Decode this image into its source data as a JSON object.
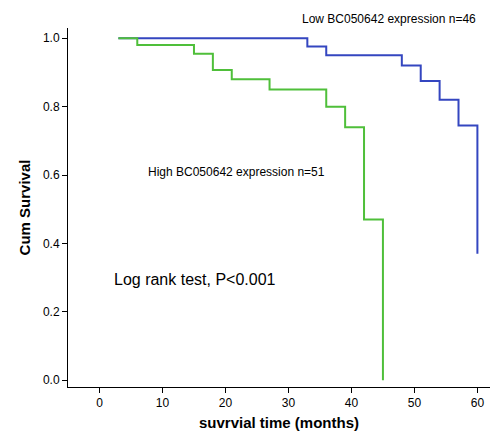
{
  "chart_data": {
    "type": "step",
    "x_label": "suvrvial time (months)",
    "y_label": "Cum Survival",
    "annotations": [
      "Log rank test, P<0.001"
    ],
    "series": [
      {
        "name": "Low BC050642 expression n=46",
        "color": "#3446c0",
        "x": [
          3,
          33,
          36,
          48,
          51,
          54,
          57,
          60
        ],
        "values": [
          1.0,
          0.976,
          0.95,
          0.92,
          0.875,
          0.82,
          0.745,
          0.37
        ]
      },
      {
        "name": "High BC050642 expression n=51",
        "color": "#4fbf3a",
        "x": [
          3,
          6,
          15,
          18,
          21,
          27,
          36,
          39,
          42,
          45
        ],
        "values": [
          1.0,
          0.98,
          0.955,
          0.907,
          0.88,
          0.85,
          0.8,
          0.74,
          0.47,
          0.0
        ]
      }
    ],
    "xlim": [
      -5,
      62
    ],
    "ylim": [
      -0.02,
      1.03
    ],
    "xticks": [
      0,
      10,
      20,
      30,
      40,
      50,
      60
    ],
    "yticks": [
      {
        "value": 0,
        "label": "0.0"
      },
      0.2,
      0.4,
      0.6,
      0.8,
      {
        "value": 1,
        "label": "1.0"
      }
    ],
    "grid": false,
    "legend": "none"
  }
}
